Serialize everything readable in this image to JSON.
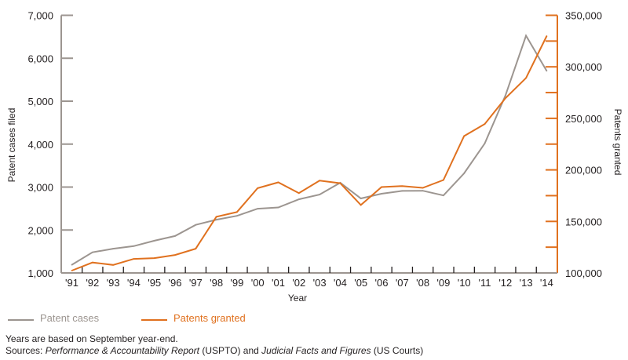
{
  "chart_data": {
    "type": "line",
    "title": "",
    "xlabel": "Year",
    "ylabel": "Patent cases filed",
    "y2label": "Patents granted",
    "categories": [
      "'91",
      "'92",
      "'93",
      "'94",
      "'95",
      "'96",
      "'97",
      "'98",
      "'99",
      "'00",
      "'01",
      "'02",
      "'03",
      "'04",
      "'05",
      "'06",
      "'07",
      "'08",
      "'09",
      "'10",
      "'11",
      "'12",
      "'13",
      "'14"
    ],
    "ylim": [
      1000,
      7000
    ],
    "y_ticks": [
      1000,
      2000,
      3000,
      4000,
      5000,
      6000,
      7000
    ],
    "y_tick_labels": [
      "1,000",
      "2,000",
      "3,000",
      "4,000",
      "5,000",
      "6,000",
      "7,000"
    ],
    "y2lim": [
      100000,
      350000
    ],
    "y2_ticks": [
      100000,
      125000,
      150000,
      175000,
      200000,
      225000,
      250000,
      275000,
      300000,
      325000,
      350000
    ],
    "y2_tick_labels": [
      "100,000",
      "",
      "150,000",
      "",
      "200,000",
      "",
      "250,000",
      "",
      "300,000",
      "",
      "350,000"
    ],
    "grid": false,
    "legend_position": "bottom-left",
    "series": [
      {
        "name": "Patent cases",
        "axis": "left",
        "color": "#9c9590",
        "values": [
          1190,
          1480,
          1565,
          1625,
          1750,
          1860,
          2120,
          2240,
          2330,
          2495,
          2525,
          2715,
          2825,
          3100,
          2735,
          2845,
          2910,
          2915,
          2805,
          3320,
          4015,
          5130,
          6525,
          5705
        ]
      },
      {
        "name": "Patents granted",
        "axis": "right",
        "color": "#e0711f",
        "values": [
          102300,
          110100,
          107800,
          113600,
          114400,
          117400,
          123500,
          154500,
          159100,
          182300,
          187900,
          177500,
          189600,
          187100,
          165900,
          183300,
          184300,
          182600,
          190200,
          232800,
          244500,
          269500,
          289200,
          329800
        ]
      }
    ]
  },
  "notes": {
    "line1": "Years are based on September year-end.",
    "sources_prefix": "Sources: ",
    "source1": "Performance & Accountability Report",
    "source1_org": " (USPTO) and ",
    "source2": "Judicial Facts and Figures",
    "source2_org": " (US Courts)"
  }
}
